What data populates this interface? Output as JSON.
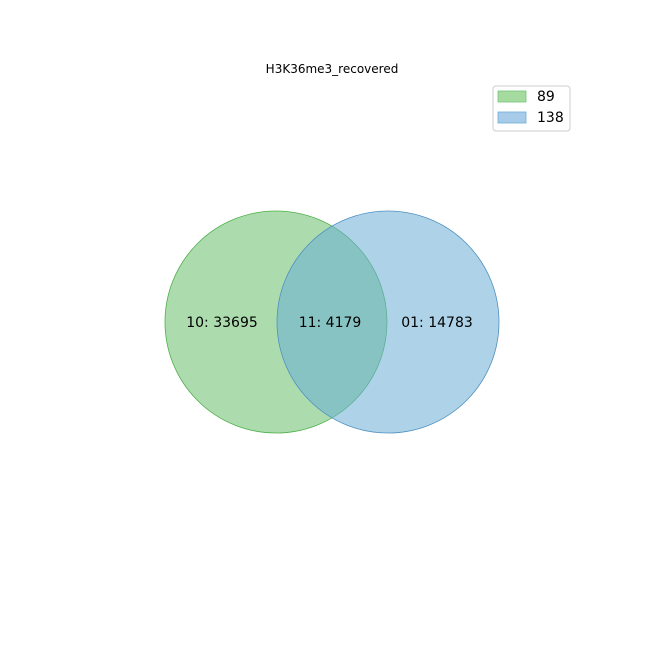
{
  "title": "H3K36me3_recovered",
  "colors": {
    "set_a": "#74c476",
    "set_b": "#6baed6",
    "set_a_edge": "#4daf4a",
    "set_b_edge": "#4f8fc0",
    "legend_border": "#cccccc"
  },
  "legend": {
    "items": [
      {
        "label": "89",
        "color": "#a6dba0"
      },
      {
        "label": "138",
        "color": "#a9cbea"
      }
    ]
  },
  "regions": {
    "a_only": "10: 33695",
    "both": "11: 4179",
    "b_only": "01: 14783"
  }
}
